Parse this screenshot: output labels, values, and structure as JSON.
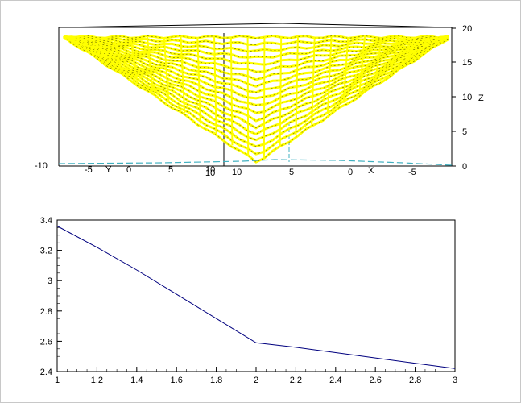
{
  "chart_data": [
    {
      "type": "surface",
      "mesh_color": "#ffff00",
      "mesh_edge_color": "#000000",
      "contour_color": "#40b0c0",
      "x_ticks": [
        "10",
        "5",
        "0",
        "-5"
      ],
      "y_ticks": [
        "-10",
        "-5",
        "0",
        "5",
        "10"
      ],
      "z_ticks": [
        "0",
        "5",
        "10",
        "15",
        "20"
      ],
      "z_corner_label": "10",
      "xlabel": "X",
      "ylabel": "Y",
      "zlabel": "Z",
      "zlim": [
        0,
        20
      ],
      "grid": false
    },
    {
      "type": "line",
      "line_color": "#00007f",
      "xlim": [
        1,
        3
      ],
      "ylim": [
        2.4,
        3.4
      ],
      "x_ticks": [
        "1",
        "1.2",
        "1.4",
        "1.6",
        "1.8",
        "2",
        "2.2",
        "2.4",
        "2.6",
        "2.8",
        "3"
      ],
      "y_ticks": [
        "2.4",
        "2.6",
        "2.8",
        "3",
        "3.2",
        "3.4"
      ],
      "series": [
        {
          "x": [
            1,
            1.2,
            1.4,
            1.6,
            1.8,
            2,
            2.2,
            2.4,
            2.6,
            2.8,
            3
          ],
          "y": [
            3.36,
            3.22,
            3.07,
            2.91,
            2.75,
            2.59,
            2.56,
            2.525,
            2.49,
            2.455,
            2.42
          ]
        }
      ],
      "grid": false
    }
  ]
}
